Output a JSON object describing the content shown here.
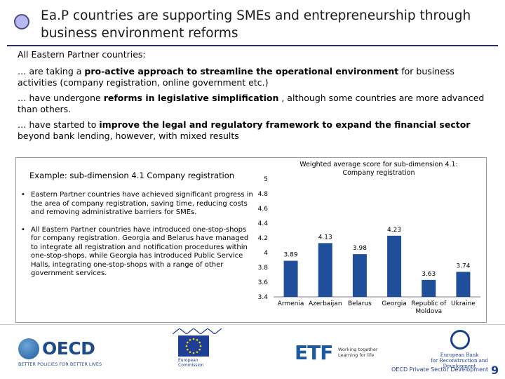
{
  "slide": {
    "title": "Ea.P countries are supporting SMEs and entrepreneurship through business environment reforms",
    "page_number": "9",
    "footer_caption": "OECD Private Sector Development"
  },
  "intro": {
    "lead": "All Eastern Partner countries:",
    "points": [
      {
        "prefix": "… are taking a ",
        "bold": "pro-active approach to streamline the operational environment",
        "suffix": " for business activities (company registration, online government etc.)"
      },
      {
        "prefix": "… have undergone ",
        "bold": "reforms in legislative simplification",
        "suffix": " , although some countries are more advanced than others."
      },
      {
        "prefix": "… have started to ",
        "bold": "improve the legal and regulatory framework to expand the financial sector",
        "suffix": " beyond bank lending, however, with mixed results"
      }
    ]
  },
  "example": {
    "title": "Example: sub-dimension 4.1 Company registration",
    "bullet_char": "•",
    "bullets": [
      "Eastern Partner countries have achieved significant progress in the area of company registration, saving time, reducing costs and removing administrative barriers for SMEs.",
      "All Eastern Partner countries have introduced one-stop-shops for company registration. Georgia and Belarus have managed to integrate all registration and notification procedures within one-stop-shops, while Georgia has introduced Public Service Halls, integrating one-stop-shops with a range of other government services."
    ]
  },
  "chart_data": {
    "type": "bar",
    "title": "Weighted average score for sub-dimension 4.1: Company registration",
    "categories": [
      "Armenia",
      "Azerbaijan",
      "Belarus",
      "Georgia",
      "Republic of Moldova",
      "Ukraine"
    ],
    "category_lines": [
      [
        "Armenia"
      ],
      [
        "Azerbaijan"
      ],
      [
        "Belarus"
      ],
      [
        "Georgia"
      ],
      [
        "Republic of",
        "Moldova"
      ],
      [
        "Ukraine"
      ]
    ],
    "values": [
      3.89,
      4.13,
      3.98,
      4.23,
      3.63,
      3.74
    ],
    "value_labels": [
      "3.89",
      "4.13",
      "3.98",
      "4.23",
      "3.63",
      "3.74"
    ],
    "ylim": [
      3.4,
      5
    ],
    "yticks": [
      "3.4",
      "3.6",
      "3.8",
      "4",
      "4.2",
      "4.4",
      "4.6",
      "4.8",
      "5"
    ],
    "grid": false,
    "bar_color": "#1f4e9a"
  },
  "logos": {
    "oecd_word": "OECD",
    "oecd_tagline": "BETTER POLICIES FOR BETTER LIVES",
    "eu_text": [
      "European",
      "Commission"
    ],
    "etf_word": "ETF",
    "etf_tagline": [
      "Working together",
      "Learning for life"
    ],
    "ebrd_text": [
      "European Bank",
      "for Reconstruction and Development"
    ]
  },
  "colors": {
    "title_rule": "#2d2d6e",
    "accent_blue": "#1e3f96"
  }
}
